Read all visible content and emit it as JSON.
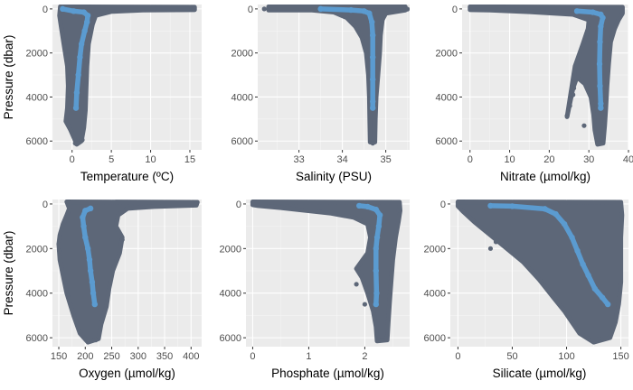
{
  "colors": {
    "panel_background": "#ebebeb",
    "grid_major": "#ffffff",
    "grid_minor": "#f5f5f5",
    "scatter_points": "#5d6778",
    "profile_line": "#5b9bd0",
    "tick_text": "#4d4d4d"
  },
  "chart_data": [
    {
      "type": "scatter",
      "xlabel": "Temperature (ºC)",
      "ylabel": "Pressure (dbar)",
      "xlim": [
        -2.5,
        16.5
      ],
      "ylim": [
        6400,
        -200
      ],
      "xticks": [
        0,
        5,
        10,
        15
      ],
      "yticks": [
        0,
        2000,
        4000,
        6000
      ],
      "y_reversed": true,
      "grid": true,
      "cloud_outline": [
        [
          -1.5,
          -100
        ],
        [
          15.6,
          -80
        ],
        [
          15.6,
          40
        ],
        [
          9,
          60
        ],
        [
          5,
          120
        ],
        [
          3,
          300
        ],
        [
          2.6,
          700
        ],
        [
          2.1,
          1600
        ],
        [
          1.9,
          2600
        ],
        [
          1.8,
          3600
        ],
        [
          1.7,
          4600
        ],
        [
          1.5,
          5400
        ],
        [
          1.2,
          6000
        ],
        [
          0.6,
          6150
        ],
        [
          0.3,
          5900
        ],
        [
          -0.2,
          5500
        ],
        [
          -0.8,
          5100
        ],
        [
          -0.6,
          4500
        ],
        [
          -0.5,
          3500
        ],
        [
          -0.6,
          2600
        ],
        [
          -1.0,
          1700
        ],
        [
          -1.4,
          800
        ],
        [
          -1.6,
          300
        ]
      ],
      "profile": [
        [
          -1.2,
          0
        ],
        [
          0.2,
          100
        ],
        [
          1.5,
          150
        ],
        [
          2.0,
          300
        ],
        [
          1.9,
          600
        ],
        [
          1.6,
          1000
        ],
        [
          1.2,
          1600
        ],
        [
          1.0,
          2200
        ],
        [
          0.8,
          3000
        ],
        [
          0.6,
          3800
        ],
        [
          0.5,
          4500
        ]
      ],
      "outliers": [
        [
          0.4,
          6100
        ],
        [
          1.3,
          5950
        ],
        [
          0.9,
          6050
        ],
        [
          15.5,
          5
        ]
      ]
    },
    {
      "type": "scatter",
      "xlabel": "Salinity (PSU)",
      "ylabel": "",
      "xlim": [
        32.05,
        35.55
      ],
      "ylim": [
        6400,
        -200
      ],
      "xticks": [
        33,
        34,
        35
      ],
      "yticks": [
        0,
        2000,
        4000,
        6000
      ],
      "y_reversed": true,
      "grid": true,
      "cloud_outline": [
        [
          32.3,
          -100
        ],
        [
          35.45,
          -100
        ],
        [
          35.45,
          60
        ],
        [
          35.0,
          200
        ],
        [
          34.92,
          500
        ],
        [
          34.88,
          1200
        ],
        [
          34.86,
          2000
        ],
        [
          34.82,
          3000
        ],
        [
          34.78,
          4000
        ],
        [
          34.76,
          5000
        ],
        [
          34.75,
          6050
        ],
        [
          34.64,
          6050
        ],
        [
          34.63,
          5000
        ],
        [
          34.62,
          4000
        ],
        [
          34.6,
          3000
        ],
        [
          34.55,
          2000
        ],
        [
          34.45,
          1300
        ],
        [
          34.3,
          800
        ],
        [
          34.1,
          400
        ],
        [
          33.8,
          150
        ],
        [
          33.3,
          60
        ],
        [
          32.3,
          60
        ]
      ],
      "profile": [
        [
          33.5,
          0
        ],
        [
          34.2,
          50
        ],
        [
          34.5,
          100
        ],
        [
          34.62,
          200
        ],
        [
          34.68,
          600
        ],
        [
          34.7,
          1200
        ],
        [
          34.7,
          2200
        ],
        [
          34.7,
          3200
        ],
        [
          34.7,
          4200
        ],
        [
          34.7,
          4500
        ]
      ],
      "outliers": [
        [
          32.2,
          0
        ],
        [
          35.5,
          10
        ],
        [
          34.7,
          6100
        ]
      ]
    },
    {
      "type": "scatter",
      "xlabel": "Nitrate (µmol/kg)",
      "ylabel": "",
      "xlim": [
        -2,
        40
      ],
      "ylim": [
        6400,
        -200
      ],
      "xticks": [
        0,
        10,
        20,
        30,
        40
      ],
      "yticks": [
        0,
        2000,
        4000,
        6000
      ],
      "y_reversed": true,
      "grid": true,
      "cloud_outline": [
        [
          0,
          -100
        ],
        [
          38.5,
          -80
        ],
        [
          38.5,
          200
        ],
        [
          37.5,
          500
        ],
        [
          36.5,
          900
        ],
        [
          35.5,
          1500
        ],
        [
          35.0,
          2500
        ],
        [
          34.6,
          3500
        ],
        [
          34.3,
          4500
        ],
        [
          34.0,
          5300
        ],
        [
          33.6,
          6100
        ],
        [
          32.2,
          6150
        ],
        [
          31.5,
          5500
        ],
        [
          31.2,
          4800
        ],
        [
          30.5,
          4000
        ],
        [
          29.0,
          3400
        ],
        [
          27.0,
          3100
        ],
        [
          26.0,
          3600
        ],
        [
          24.5,
          4900
        ],
        [
          26.5,
          2600
        ],
        [
          28.5,
          1600
        ],
        [
          29.8,
          900
        ],
        [
          30.0,
          500
        ],
        [
          26.0,
          250
        ],
        [
          15.0,
          130
        ],
        [
          5.0,
          60
        ],
        [
          0,
          40
        ]
      ],
      "profile": [
        [
          27.0,
          100
        ],
        [
          31.0,
          150
        ],
        [
          33.0,
          250
        ],
        [
          33.5,
          400
        ],
        [
          33.0,
          800
        ],
        [
          32.8,
          1500
        ],
        [
          32.7,
          2500
        ],
        [
          32.8,
          3500
        ],
        [
          33.0,
          4300
        ],
        [
          33.0,
          4500
        ]
      ],
      "outliers": [
        [
          24.5,
          4850
        ],
        [
          25.2,
          4400
        ],
        [
          26.0,
          3900
        ],
        [
          26.2,
          3600
        ],
        [
          28.8,
          5300
        ],
        [
          33.2,
          6100
        ]
      ]
    },
    {
      "type": "scatter",
      "xlabel": "Oxygen (µmol/kg)",
      "ylabel": "Pressure (dbar)",
      "xlim": [
        138,
        420
      ],
      "ylim": [
        6400,
        -200
      ],
      "xticks": [
        150,
        200,
        250,
        300,
        350,
        400
      ],
      "yticks": [
        0,
        2000,
        4000,
        6000
      ],
      "y_reversed": true,
      "grid": true,
      "cloud_outline": [
        [
          165,
          -100
        ],
        [
          412,
          -80
        ],
        [
          410,
          60
        ],
        [
          330,
          120
        ],
        [
          280,
          200
        ],
        [
          262,
          500
        ],
        [
          258,
          1000
        ],
        [
          270,
          1500
        ],
        [
          265,
          2200
        ],
        [
          252,
          3000
        ],
        [
          245,
          3800
        ],
        [
          240,
          4600
        ],
        [
          230,
          5400
        ],
        [
          225,
          6050
        ],
        [
          205,
          6200
        ],
        [
          190,
          5800
        ],
        [
          178,
          5000
        ],
        [
          165,
          4000
        ],
        [
          158,
          3200
        ],
        [
          152,
          2500
        ],
        [
          150,
          1800
        ],
        [
          152,
          1400
        ],
        [
          158,
          900
        ],
        [
          165,
          500
        ],
        [
          170,
          200
        ]
      ],
      "profile": [
        [
          210,
          200
        ],
        [
          200,
          300
        ],
        [
          195,
          600
        ],
        [
          197,
          1000
        ],
        [
          200,
          1500
        ],
        [
          205,
          2000
        ],
        [
          208,
          2500
        ],
        [
          210,
          3000
        ],
        [
          213,
          3500
        ],
        [
          215,
          4000
        ],
        [
          218,
          4500
        ]
      ],
      "outliers": [
        [
          150,
          1800
        ],
        [
          151,
          2100
        ],
        [
          220,
          6100
        ],
        [
          410,
          10
        ],
        [
          270,
          1600
        ]
      ]
    },
    {
      "type": "scatter",
      "xlabel": "Phosphate (µmol/kg)",
      "ylabel": "",
      "xlim": [
        -0.12,
        2.8
      ],
      "ylim": [
        6400,
        -200
      ],
      "xticks": [
        0,
        1,
        2
      ],
      "yticks": [
        0,
        2000,
        4000,
        6000
      ],
      "y_reversed": true,
      "grid": true,
      "cloud_outline": [
        [
          0,
          -100
        ],
        [
          2.62,
          -80
        ],
        [
          2.63,
          300
        ],
        [
          2.6,
          800
        ],
        [
          2.55,
          1500
        ],
        [
          2.5,
          2500
        ],
        [
          2.47,
          3500
        ],
        [
          2.44,
          4500
        ],
        [
          2.42,
          5300
        ],
        [
          2.4,
          6100
        ],
        [
          2.22,
          6150
        ],
        [
          2.2,
          5500
        ],
        [
          2.15,
          4800
        ],
        [
          2.05,
          4000
        ],
        [
          1.95,
          3300
        ],
        [
          1.85,
          2900
        ],
        [
          2.05,
          2200
        ],
        [
          2.1,
          1500
        ],
        [
          2.05,
          900
        ],
        [
          1.8,
          600
        ],
        [
          1.4,
          420
        ],
        [
          0.9,
          280
        ],
        [
          0.5,
          170
        ],
        [
          0.1,
          80
        ],
        [
          0,
          40
        ]
      ],
      "profile": [
        [
          1.9,
          80
        ],
        [
          2.05,
          120
        ],
        [
          2.2,
          250
        ],
        [
          2.27,
          500
        ],
        [
          2.25,
          1000
        ],
        [
          2.22,
          1500
        ],
        [
          2.2,
          2000
        ],
        [
          2.2,
          3000
        ],
        [
          2.21,
          4000
        ],
        [
          2.2,
          4500
        ]
      ],
      "outliers": [
        [
          2.0,
          4500
        ],
        [
          1.85,
          3600
        ],
        [
          2.3,
          6100
        ],
        [
          2.6,
          300
        ]
      ]
    },
    {
      "type": "scatter",
      "xlabel": "Silicate (µmol/kg)",
      "ylabel": "",
      "xlim": [
        -7,
        157
      ],
      "ylim": [
        6400,
        -200
      ],
      "xticks": [
        0,
        50,
        100,
        150
      ],
      "yticks": [
        0,
        2000,
        4000,
        6000
      ],
      "y_reversed": true,
      "grid": true,
      "cloud_outline": [
        [
          0,
          -100
        ],
        [
          150,
          -80
        ],
        [
          151,
          500
        ],
        [
          150,
          1500
        ],
        [
          150,
          2500
        ],
        [
          150,
          3500
        ],
        [
          148,
          4500
        ],
        [
          145,
          5300
        ],
        [
          140,
          6000
        ],
        [
          125,
          6200
        ],
        [
          112,
          5800
        ],
        [
          105,
          5300
        ],
        [
          98,
          4800
        ],
        [
          88,
          4200
        ],
        [
          75,
          3400
        ],
        [
          60,
          2600
        ],
        [
          45,
          2000
        ],
        [
          30,
          1400
        ],
        [
          15,
          800
        ],
        [
          5,
          350
        ],
        [
          0,
          100
        ]
      ],
      "profile": [
        [
          30,
          80
        ],
        [
          50,
          100
        ],
        [
          80,
          220
        ],
        [
          90,
          450
        ],
        [
          98,
          900
        ],
        [
          105,
          1500
        ],
        [
          110,
          2100
        ],
        [
          115,
          2700
        ],
        [
          120,
          3200
        ],
        [
          126,
          3800
        ],
        [
          133,
          4200
        ],
        [
          138,
          4500
        ]
      ],
      "outliers": [
        [
          30,
          2000
        ],
        [
          35,
          1700
        ],
        [
          130,
          6050
        ],
        [
          150,
          100
        ]
      ]
    }
  ]
}
